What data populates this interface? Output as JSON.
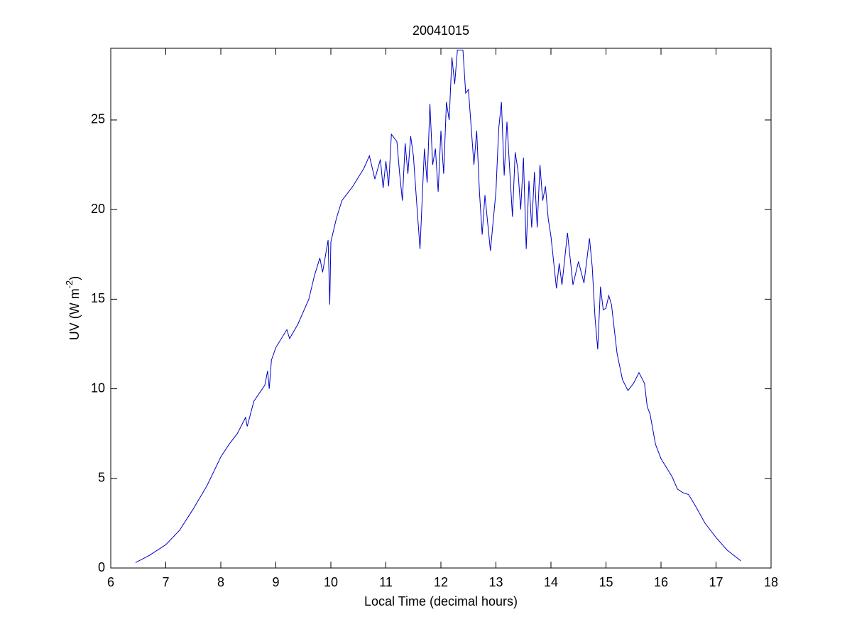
{
  "chart_data": {
    "type": "line",
    "title": "20041015",
    "xlabel": "Local Time (decimal hours)",
    "ylabel": "UV (W m",
    "ylabel_sup": "-2",
    "ylabel_end": ")",
    "xlim": [
      6,
      18
    ],
    "xticks": [
      6,
      7,
      8,
      9,
      10,
      11,
      12,
      13,
      14,
      15,
      16,
      17,
      18
    ],
    "ylim": [
      0,
      29
    ],
    "yticks": [
      0,
      5,
      10,
      15,
      20,
      25
    ],
    "grid": false,
    "box": true,
    "series": [
      {
        "name": "UV",
        "color": "#0000c8",
        "x": [
          6.45,
          6.7,
          7.0,
          7.25,
          7.5,
          7.75,
          8.0,
          8.15,
          8.3,
          8.45,
          8.48,
          8.6,
          8.8,
          8.85,
          8.88,
          8.92,
          9.0,
          9.2,
          9.25,
          9.4,
          9.6,
          9.7,
          9.8,
          9.85,
          9.9,
          9.95,
          9.98,
          10.0,
          10.1,
          10.2,
          10.4,
          10.6,
          10.7,
          10.8,
          10.9,
          10.95,
          11.0,
          11.05,
          11.1,
          11.2,
          11.25,
          11.3,
          11.35,
          11.4,
          11.45,
          11.5,
          11.55,
          11.62,
          11.7,
          11.75,
          11.8,
          11.85,
          11.9,
          11.95,
          12.0,
          12.05,
          12.1,
          12.15,
          12.2,
          12.25,
          12.3,
          12.4,
          12.45,
          12.5,
          12.6,
          12.65,
          12.7,
          12.75,
          12.8,
          12.9,
          13.0,
          13.05,
          13.1,
          13.15,
          13.2,
          13.3,
          13.35,
          13.4,
          13.45,
          13.5,
          13.55,
          13.6,
          13.65,
          13.7,
          13.75,
          13.8,
          13.85,
          13.9,
          13.95,
          14.0,
          14.1,
          14.15,
          14.2,
          14.3,
          14.4,
          14.5,
          14.6,
          14.7,
          14.75,
          14.8,
          14.85,
          14.9,
          14.95,
          15.0,
          15.05,
          15.1,
          15.2,
          15.3,
          15.4,
          15.5,
          15.6,
          15.7,
          15.75,
          15.8,
          15.9,
          16.0,
          16.1,
          16.2,
          16.3,
          16.4,
          16.5,
          16.6,
          16.8,
          17.0,
          17.2,
          17.45
        ],
        "values": [
          0.3,
          0.7,
          1.3,
          2.1,
          3.3,
          4.6,
          6.2,
          6.9,
          7.5,
          8.4,
          7.9,
          9.3,
          10.2,
          11.0,
          10.0,
          11.6,
          12.3,
          13.3,
          12.8,
          13.6,
          15.0,
          16.3,
          17.3,
          16.5,
          17.4,
          18.3,
          14.7,
          18.2,
          19.5,
          20.5,
          21.3,
          22.3,
          23.0,
          21.7,
          22.8,
          21.2,
          22.7,
          21.3,
          24.2,
          23.8,
          22.0,
          20.5,
          23.7,
          22.0,
          24.1,
          23.0,
          20.8,
          17.8,
          23.4,
          21.5,
          25.9,
          22.5,
          23.4,
          21.0,
          24.4,
          22.0,
          26.0,
          25.0,
          28.5,
          27.0,
          28.9,
          28.9,
          26.5,
          26.7,
          22.5,
          24.4,
          21.0,
          18.6,
          20.8,
          17.7,
          21.0,
          24.5,
          26.0,
          21.9,
          24.9,
          19.6,
          23.2,
          22.2,
          20.0,
          22.9,
          17.8,
          21.6,
          19.0,
          22.1,
          19.0,
          22.5,
          20.5,
          21.3,
          19.5,
          18.5,
          15.6,
          17.0,
          15.8,
          18.7,
          15.8,
          17.1,
          15.9,
          18.4,
          16.8,
          14.0,
          12.2,
          15.7,
          14.4,
          14.5,
          15.2,
          14.7,
          12.0,
          10.5,
          9.9,
          10.3,
          10.9,
          10.3,
          9.0,
          8.6,
          6.9,
          6.1,
          5.6,
          5.1,
          4.4,
          4.2,
          4.1,
          3.6,
          2.5,
          1.7,
          1.0,
          0.4
        ]
      }
    ]
  }
}
